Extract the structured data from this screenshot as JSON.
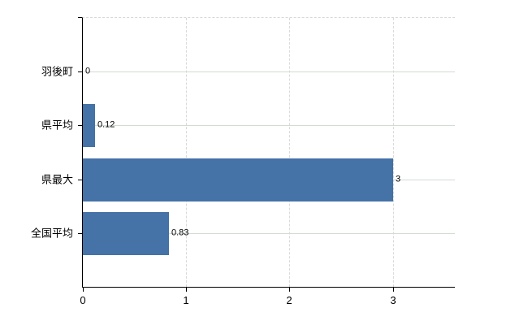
{
  "chart_data": {
    "type": "bar",
    "orientation": "horizontal",
    "title": "",
    "xlabel": "",
    "ylabel": "",
    "categories": [
      "羽後町",
      "県平均",
      "県最大",
      "全国平均"
    ],
    "values": [
      0,
      0.12,
      3,
      0.83
    ],
    "value_labels": [
      "0",
      "0.12",
      "3",
      "0.83"
    ],
    "x_ticks": [
      0,
      1,
      2,
      3
    ],
    "x_tick_labels": [
      "0",
      "1",
      "2",
      "3"
    ],
    "xlim": [
      0,
      3.6
    ],
    "grid": true,
    "legend": false,
    "colors": {
      "bar": "#4572a7",
      "axis": "#000000",
      "text": "#000000",
      "h_gridline": "#d3dcd3",
      "v_gridline": "#d9d9d9",
      "background": "#ffffff"
    }
  }
}
